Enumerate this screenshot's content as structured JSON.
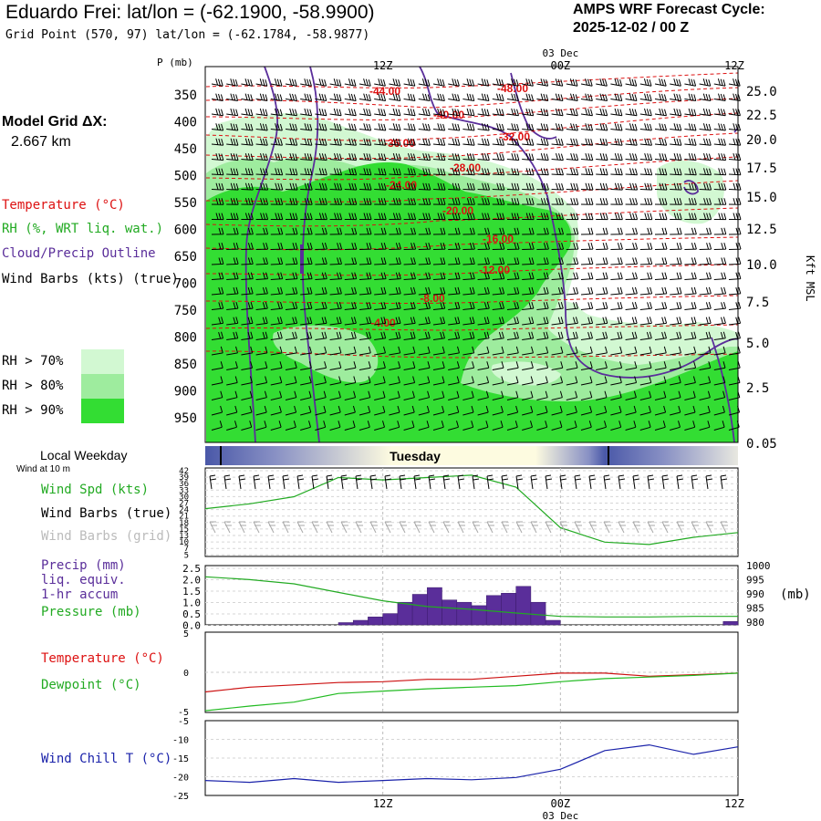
{
  "header": {
    "title": "Eduardo Frei:  lat/lon = (-62.1900, -58.9900)",
    "subtitle": "Grid Point (570, 97) lat/lon = (-62.1784, -58.9877)",
    "cycle_line1": "AMPS WRF Forecast Cycle:",
    "cycle_line2": "2025-12-02 / 00  Z"
  },
  "left_panel": {
    "model_grid_label": "Model Grid ΔX:",
    "model_grid_value": "2.667 km",
    "legend_temp": "Temperature (°C)",
    "legend_rh": "RH (%, WRT liq. wat.)",
    "legend_cloud": "Cloud/Precip Outline",
    "legend_wind": "Wind Barbs (kts) (true)",
    "rh70": "RH > 70%",
    "rh80": "RH > 80%",
    "rh90": "RH > 90%",
    "colors": {
      "rh70": "#d2f8d2",
      "rh80": "#9eec9e",
      "rh90": "#33dd33",
      "temp": "#dd1111",
      "cloud": "#5a2e9a"
    }
  },
  "time_axis": {
    "top_ticks": [
      "12Z",
      "00Z",
      "12Z"
    ],
    "date_label": "03 Dec",
    "bottom_ticks": [
      "12Z",
      "00Z",
      "12Z"
    ]
  },
  "weekday_bar": {
    "label": "Local Weekday",
    "day": "Tuesday",
    "wind_note": "Wind at 10 m"
  },
  "panel_labels": {
    "wind_spd": "Wind Spd (kts)",
    "wind_true": "Wind Barbs (true)",
    "wind_grid": "Wind Barbs (grid)",
    "precip1": "Precip (mm)",
    "precip2": "liq. equiv.",
    "precip3": "1-hr accum",
    "pressure": "Pressure (mb)",
    "pressure_unit": "(mb)",
    "temperature": "Temperature (°C)",
    "dewpoint": "Dewpoint (°C)",
    "windchill": "Wind Chill T (°C)"
  },
  "chart_data": [
    {
      "type": "heatmap",
      "name": "cross-section",
      "y_left_label": "P (mb)",
      "y_left_ticks": [
        "350",
        "400",
        "450",
        "500",
        "550",
        "600",
        "650",
        "700",
        "750",
        "800",
        "850",
        "900",
        "950"
      ],
      "y_right_label": "Kft MSL",
      "y_right_ticks": [
        "25.0",
        "22.5",
        "20.0",
        "17.5",
        "15.0",
        "12.5",
        "10.0",
        "7.5",
        "5.0",
        "2.5",
        "0.05"
      ],
      "temperature_contour_labels": [
        "-44.00",
        "-40.00",
        "-48.00",
        "-36.00",
        "-32.00",
        "-28.00",
        "-24.00",
        "-20.00",
        "-16.00",
        "-12.00",
        "-8.00",
        "-4.00"
      ]
    },
    {
      "type": "line",
      "name": "wind speed",
      "y_ticks": [
        "42",
        "39",
        "36",
        "33",
        "30",
        "27",
        "24",
        "21",
        "18",
        "15",
        "13",
        "10",
        "7",
        "5"
      ],
      "ylim": [
        5,
        42
      ],
      "x_hours": [
        0,
        3,
        6,
        9,
        12,
        15,
        18,
        21,
        24,
        27,
        30,
        33,
        36
      ],
      "values": [
        25,
        27,
        30,
        38,
        37,
        38,
        39,
        34,
        17,
        11,
        10,
        13,
        15
      ]
    },
    {
      "type": "bar",
      "name": "precip + pressure",
      "y_left_ticks": [
        "2.5",
        "2.0",
        "1.5",
        "1.0",
        "0.5",
        "0.0"
      ],
      "y_right_ticks": [
        "1000",
        "995",
        "990",
        "985",
        "980"
      ],
      "bars": [
        {
          "h0": 9,
          "h1": 10,
          "v": 0.1
        },
        {
          "h0": 10,
          "h1": 11,
          "v": 0.2
        },
        {
          "h0": 11,
          "h1": 12,
          "v": 0.35
        },
        {
          "h0": 12,
          "h1": 13,
          "v": 0.5
        },
        {
          "h0": 13,
          "h1": 14,
          "v": 1.0
        },
        {
          "h0": 14,
          "h1": 15,
          "v": 1.35
        },
        {
          "h0": 15,
          "h1": 16,
          "v": 1.65
        },
        {
          "h0": 16,
          "h1": 17,
          "v": 1.1
        },
        {
          "h0": 17,
          "h1": 18,
          "v": 1.0
        },
        {
          "h0": 18,
          "h1": 19,
          "v": 0.85
        },
        {
          "h0": 19,
          "h1": 20,
          "v": 1.3
        },
        {
          "h0": 20,
          "h1": 21,
          "v": 1.4
        },
        {
          "h0": 21,
          "h1": 22,
          "v": 1.7
        },
        {
          "h0": 22,
          "h1": 23,
          "v": 1.0
        },
        {
          "h0": 23,
          "h1": 24,
          "v": 0.2
        },
        {
          "h0": 35,
          "h1": 36,
          "v": 0.15
        }
      ],
      "pressure_x": [
        0,
        3,
        6,
        9,
        12,
        15,
        18,
        21,
        24,
        27,
        30,
        33,
        36
      ],
      "pressure_values": [
        997,
        996,
        994.5,
        991.5,
        988.5,
        986.5,
        985.5,
        984.2,
        983,
        982.8,
        982.8,
        983,
        983
      ]
    },
    {
      "type": "line",
      "name": "temperature + dewpoint",
      "y_ticks": [
        "5",
        "0",
        "-5"
      ],
      "ylim": [
        -5,
        5
      ],
      "x_hours": [
        0,
        3,
        6,
        9,
        12,
        15,
        18,
        21,
        24,
        27,
        30,
        33,
        36
      ],
      "temperature": [
        -2.5,
        -1.9,
        -1.6,
        -1.3,
        -1.2,
        -0.9,
        -0.9,
        -0.5,
        -0.1,
        -0.1,
        -0.5,
        -0.3,
        -0.1
      ],
      "dewpoint": [
        -4.9,
        -4.3,
        -3.8,
        -2.7,
        -2.4,
        -2.1,
        -1.9,
        -1.7,
        -1.2,
        -0.8,
        -0.6,
        -0.4,
        -0.1
      ]
    },
    {
      "type": "line",
      "name": "wind chill",
      "y_ticks": [
        "-5",
        "-10",
        "-15",
        "-20",
        "-25"
      ],
      "ylim": [
        -25,
        -5
      ],
      "x_hours": [
        0,
        3,
        6,
        9,
        12,
        15,
        18,
        21,
        24,
        27,
        30,
        33,
        36
      ],
      "values": [
        -21,
        -21.5,
        -20.5,
        -21.5,
        -21,
        -20.5,
        -20.8,
        -20.2,
        -18,
        -13,
        -11.5,
        -14,
        -12
      ]
    }
  ]
}
